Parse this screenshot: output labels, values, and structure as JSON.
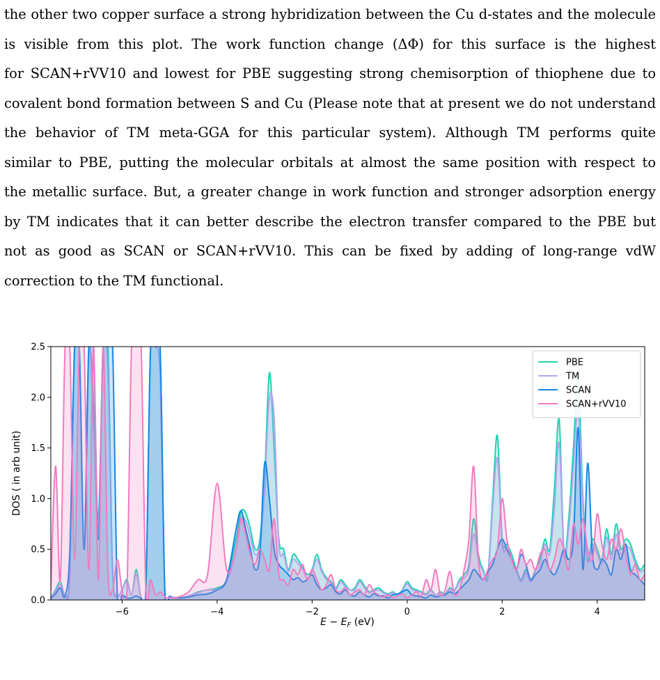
{
  "paragraph": {
    "lines": [
      "the other two copper surface a strong hybridization between the Cu d-states and the molecule",
      "is visible from this plot.  The work function change (ΔΦ) for this surface is the highest",
      "for SCAN+rVV10 and lowest for PBE suggesting strong chemisorption of thiophene due to",
      "covalent bond formation between S and Cu (Please note that at present we do not understand",
      "the behavior of TM meta-GGA for this particular system).  Although TM performs quite",
      "similar to PBE, putting the molecular orbitals at almost the same position with respect to",
      "the metallic surface. But, a greater change in work function and stronger adsorption energy",
      "by TM indicates that it can better describe the electron transfer compared to the PBE but",
      "not as good as SCAN or SCAN+rVV10.  This can be fixed by adding of long-range vdW",
      "correction to the TM functional."
    ]
  },
  "chart_data": {
    "type": "area",
    "title": "",
    "xlabel": "E − E_F (eV)",
    "ylabel": "DOS ( in arb unit)",
    "xlim": [
      -7.5,
      5.0
    ],
    "ylim": [
      0.0,
      2.5
    ],
    "xticks": [
      -6,
      -4,
      -2,
      0,
      2,
      4
    ],
    "yticks": [
      0.0,
      0.5,
      1.0,
      1.5,
      2.0,
      2.5
    ],
    "xtick_labels": [
      "−6",
      "−4",
      "−2",
      "0",
      "2",
      "4"
    ],
    "ytick_labels": [
      "0.0",
      "0.5",
      "1.0",
      "1.5",
      "2.0",
      "2.5"
    ],
    "grid": false,
    "legend_position": "top-right",
    "series": [
      {
        "name": "PBE",
        "color": "#1fd1b0",
        "x": [
          -7.5,
          -7.4,
          -7.3,
          -7.2,
          -7.1,
          -7.0,
          -6.9,
          -6.8,
          -6.7,
          -6.6,
          -6.5,
          -6.4,
          -6.3,
          -6.2,
          -6.1,
          -6.0,
          -5.9,
          -5.8,
          -5.7,
          -5.6,
          -5.5,
          -5.4,
          -5.3,
          -5.2,
          -5.1,
          -5.0,
          -4.8,
          -4.6,
          -4.4,
          -4.2,
          -4.0,
          -3.8,
          -3.6,
          -3.5,
          -3.4,
          -3.3,
          -3.2,
          -3.1,
          -3.0,
          -2.9,
          -2.8,
          -2.7,
          -2.6,
          -2.5,
          -2.4,
          -2.3,
          -2.2,
          -2.1,
          -2.0,
          -1.9,
          -1.8,
          -1.7,
          -1.6,
          -1.5,
          -1.4,
          -1.3,
          -1.2,
          -1.1,
          -1.0,
          -0.9,
          -0.8,
          -0.7,
          -0.6,
          -0.5,
          -0.4,
          -0.3,
          -0.2,
          -0.1,
          0.0,
          0.1,
          0.2,
          0.3,
          0.4,
          0.5,
          0.6,
          0.7,
          0.8,
          0.9,
          1.0,
          1.1,
          1.2,
          1.3,
          1.4,
          1.5,
          1.6,
          1.7,
          1.8,
          1.9,
          2.0,
          2.1,
          2.2,
          2.3,
          2.4,
          2.5,
          2.6,
          2.7,
          2.8,
          2.9,
          3.0,
          3.1,
          3.2,
          3.3,
          3.4,
          3.5,
          3.6,
          3.7,
          3.8,
          3.9,
          4.0,
          4.1,
          4.2,
          4.3,
          4.4,
          4.5,
          4.6,
          4.7,
          4.8,
          4.9,
          5.0
        ],
        "y": [
          0.02,
          0.1,
          0.18,
          0.05,
          0.3,
          2.5,
          2.5,
          0.6,
          2.5,
          1.9,
          0.8,
          2.5,
          2.5,
          0.3,
          0.05,
          0.1,
          0.2,
          0.05,
          0.3,
          0.02,
          0.1,
          2.5,
          2.5,
          2.5,
          0.08,
          0.04,
          0.02,
          0.04,
          0.08,
          0.1,
          0.12,
          0.2,
          0.6,
          0.87,
          0.86,
          0.7,
          0.5,
          0.6,
          1.2,
          2.24,
          1.5,
          0.6,
          0.5,
          0.3,
          0.45,
          0.4,
          0.32,
          0.25,
          0.3,
          0.45,
          0.3,
          0.22,
          0.18,
          0.12,
          0.2,
          0.15,
          0.1,
          0.12,
          0.2,
          0.14,
          0.08,
          0.1,
          0.12,
          0.08,
          0.06,
          0.08,
          0.05,
          0.1,
          0.18,
          0.12,
          0.1,
          0.08,
          0.06,
          0.1,
          0.05,
          0.08,
          0.06,
          0.12,
          0.1,
          0.2,
          0.25,
          0.35,
          0.8,
          0.45,
          0.3,
          0.25,
          1.0,
          1.62,
          0.6,
          0.55,
          0.45,
          0.3,
          0.2,
          0.3,
          0.2,
          0.3,
          0.4,
          0.6,
          0.5,
          1.1,
          1.78,
          0.5,
          0.8,
          1.5,
          2.2,
          1.0,
          0.4,
          0.6,
          0.5,
          0.4,
          0.7,
          0.45,
          0.75,
          0.5,
          0.6,
          0.55,
          0.4,
          0.3,
          0.35
        ]
      },
      {
        "name": "TM",
        "color": "#b8a3f2",
        "x": [
          -7.5,
          -7.4,
          -7.3,
          -7.2,
          -7.1,
          -7.0,
          -6.9,
          -6.8,
          -6.7,
          -6.6,
          -6.5,
          -6.4,
          -6.3,
          -6.2,
          -6.1,
          -6.0,
          -5.9,
          -5.8,
          -5.7,
          -5.6,
          -5.5,
          -5.4,
          -5.3,
          -5.2,
          -5.1,
          -5.0,
          -4.8,
          -4.6,
          -4.4,
          -4.2,
          -4.0,
          -3.8,
          -3.6,
          -3.5,
          -3.4,
          -3.3,
          -3.2,
          -3.1,
          -3.0,
          -2.9,
          -2.8,
          -2.7,
          -2.6,
          -2.5,
          -2.4,
          -2.3,
          -2.2,
          -2.1,
          -2.0,
          -1.9,
          -1.8,
          -1.7,
          -1.6,
          -1.5,
          -1.4,
          -1.3,
          -1.2,
          -1.1,
          -1.0,
          -0.9,
          -0.8,
          -0.7,
          -0.6,
          -0.5,
          -0.4,
          -0.3,
          -0.2,
          -0.1,
          0.0,
          0.1,
          0.2,
          0.3,
          0.4,
          0.5,
          0.6,
          0.7,
          0.8,
          0.9,
          1.0,
          1.1,
          1.2,
          1.3,
          1.4,
          1.5,
          1.6,
          1.7,
          1.8,
          1.9,
          2.0,
          2.1,
          2.2,
          2.3,
          2.4,
          2.5,
          2.6,
          2.7,
          2.8,
          2.9,
          3.0,
          3.1,
          3.2,
          3.3,
          3.4,
          3.5,
          3.6,
          3.7,
          3.8,
          3.9,
          4.0,
          4.1,
          4.2,
          4.3,
          4.4,
          4.5,
          4.6,
          4.7,
          4.8,
          4.9,
          5.0
        ],
        "y": [
          0.02,
          0.08,
          0.15,
          0.05,
          0.25,
          2.5,
          2.4,
          0.55,
          2.5,
          1.7,
          0.7,
          2.5,
          2.3,
          0.28,
          0.05,
          0.1,
          0.18,
          0.05,
          0.25,
          0.02,
          0.1,
          2.5,
          2.5,
          2.2,
          0.07,
          0.04,
          0.02,
          0.04,
          0.07,
          0.1,
          0.1,
          0.18,
          0.5,
          0.8,
          0.78,
          0.62,
          0.45,
          0.55,
          1.1,
          2.0,
          1.8,
          0.55,
          0.45,
          0.28,
          0.4,
          0.36,
          0.3,
          0.22,
          0.28,
          0.4,
          0.28,
          0.2,
          0.16,
          0.1,
          0.18,
          0.13,
          0.1,
          0.1,
          0.18,
          0.12,
          0.07,
          0.09,
          0.1,
          0.07,
          0.05,
          0.07,
          0.05,
          0.09,
          0.16,
          0.1,
          0.09,
          0.07,
          0.05,
          0.09,
          0.05,
          0.07,
          0.05,
          0.1,
          0.09,
          0.18,
          0.22,
          0.3,
          0.65,
          0.4,
          0.28,
          0.22,
          0.9,
          1.4,
          0.55,
          0.5,
          0.4,
          0.28,
          0.18,
          0.27,
          0.18,
          0.28,
          0.35,
          0.55,
          0.45,
          0.9,
          1.55,
          0.45,
          0.7,
          1.3,
          1.9,
          0.9,
          0.38,
          0.55,
          0.45,
          0.36,
          0.62,
          0.4,
          0.65,
          0.45,
          0.52,
          0.5,
          0.36,
          0.28,
          0.3
        ]
      },
      {
        "name": "SCAN",
        "color": "#1587e6",
        "x": [
          -7.5,
          -7.4,
          -7.3,
          -7.2,
          -7.1,
          -7.0,
          -6.9,
          -6.8,
          -6.7,
          -6.6,
          -6.5,
          -6.4,
          -6.3,
          -6.2,
          -6.1,
          -6.0,
          -5.9,
          -5.8,
          -5.7,
          -5.6,
          -5.5,
          -5.4,
          -5.3,
          -5.2,
          -5.1,
          -5.0,
          -4.8,
          -4.6,
          -4.4,
          -4.2,
          -4.0,
          -3.8,
          -3.6,
          -3.5,
          -3.4,
          -3.3,
          -3.2,
          -3.1,
          -3.0,
          -2.9,
          -2.8,
          -2.7,
          -2.6,
          -2.5,
          -2.4,
          -2.3,
          -2.2,
          -2.1,
          -2.0,
          -1.9,
          -1.8,
          -1.7,
          -1.6,
          -1.5,
          -1.4,
          -1.3,
          -1.2,
          -1.1,
          -1.0,
          -0.9,
          -0.8,
          -0.7,
          -0.6,
          -0.5,
          -0.4,
          -0.3,
          -0.2,
          -0.1,
          0.0,
          0.1,
          0.2,
          0.3,
          0.4,
          0.5,
          0.6,
          0.7,
          0.8,
          0.9,
          1.0,
          1.1,
          1.2,
          1.3,
          1.4,
          1.5,
          1.6,
          1.7,
          1.8,
          1.9,
          2.0,
          2.1,
          2.2,
          2.3,
          2.4,
          2.5,
          2.6,
          2.7,
          2.8,
          2.9,
          3.0,
          3.1,
          3.2,
          3.3,
          3.4,
          3.5,
          3.6,
          3.7,
          3.8,
          3.9,
          4.0,
          4.1,
          4.2,
          4.3,
          4.4,
          4.5,
          4.6,
          4.7,
          4.8,
          4.9,
          5.0
        ],
        "y": [
          0.02,
          0.06,
          0.12,
          0.04,
          0.5,
          2.5,
          2.5,
          0.5,
          2.5,
          2.5,
          0.6,
          2.5,
          2.5,
          2.5,
          0.04,
          0.05,
          0.02,
          0.02,
          0.04,
          0.02,
          0.1,
          2.5,
          2.5,
          2.5,
          0.1,
          0.03,
          0.02,
          0.03,
          0.05,
          0.06,
          0.1,
          0.2,
          0.7,
          0.88,
          0.7,
          0.5,
          0.3,
          0.45,
          1.35,
          1.0,
          0.5,
          0.35,
          0.3,
          0.25,
          0.2,
          0.22,
          0.18,
          0.2,
          0.25,
          0.15,
          0.1,
          0.12,
          0.15,
          0.08,
          0.06,
          0.1,
          0.05,
          0.04,
          0.08,
          0.05,
          0.03,
          0.06,
          0.04,
          0.04,
          0.02,
          0.05,
          0.06,
          0.08,
          0.1,
          0.05,
          0.04,
          0.03,
          0.02,
          0.05,
          0.03,
          0.04,
          0.05,
          0.08,
          0.06,
          0.1,
          0.15,
          0.2,
          0.3,
          0.25,
          0.2,
          0.28,
          0.35,
          0.5,
          0.6,
          0.5,
          0.4,
          0.3,
          0.45,
          0.35,
          0.2,
          0.25,
          0.3,
          0.4,
          0.3,
          0.25,
          0.35,
          0.5,
          0.4,
          0.6,
          1.7,
          0.3,
          1.35,
          0.45,
          0.3,
          0.4,
          0.35,
          0.25,
          0.5,
          0.4,
          0.55,
          0.3,
          0.25,
          0.2,
          0.15
        ]
      },
      {
        "name": "SCAN+rVV10",
        "color": "#f07bbf",
        "x": [
          -7.5,
          -7.4,
          -7.3,
          -7.2,
          -7.1,
          -7.0,
          -6.9,
          -6.8,
          -6.7,
          -6.6,
          -6.5,
          -6.4,
          -6.3,
          -6.2,
          -6.1,
          -6.0,
          -5.9,
          -5.8,
          -5.7,
          -5.6,
          -5.5,
          -5.4,
          -5.3,
          -5.2,
          -5.1,
          -5.0,
          -4.8,
          -4.6,
          -4.4,
          -4.2,
          -4.0,
          -3.8,
          -3.6,
          -3.5,
          -3.4,
          -3.3,
          -3.2,
          -3.1,
          -3.0,
          -2.9,
          -2.8,
          -2.7,
          -2.6,
          -2.5,
          -2.4,
          -2.3,
          -2.2,
          -2.1,
          -2.0,
          -1.9,
          -1.8,
          -1.7,
          -1.6,
          -1.5,
          -1.4,
          -1.3,
          -1.2,
          -1.1,
          -1.0,
          -0.9,
          -0.8,
          -0.7,
          -0.6,
          -0.5,
          -0.4,
          -0.3,
          -0.2,
          -0.1,
          0.0,
          0.1,
          0.2,
          0.3,
          0.4,
          0.5,
          0.6,
          0.7,
          0.8,
          0.9,
          1.0,
          1.1,
          1.2,
          1.3,
          1.4,
          1.5,
          1.6,
          1.7,
          1.8,
          1.9,
          2.0,
          2.1,
          2.2,
          2.3,
          2.4,
          2.5,
          2.6,
          2.7,
          2.8,
          2.9,
          3.0,
          3.1,
          3.2,
          3.3,
          3.4,
          3.5,
          3.6,
          3.7,
          3.8,
          3.9,
          4.0,
          4.1,
          4.2,
          4.3,
          4.4,
          4.5,
          4.6,
          4.7,
          4.8,
          4.9,
          5.0
        ],
        "y": [
          0.1,
          1.32,
          0.2,
          2.5,
          2.5,
          0.4,
          2.5,
          2.5,
          0.3,
          2.5,
          0.2,
          2.5,
          0.3,
          0.1,
          0.4,
          0.1,
          0.05,
          2.5,
          2.5,
          2.5,
          0.1,
          0.2,
          0.05,
          0.08,
          0.03,
          0.02,
          0.03,
          0.08,
          0.2,
          0.25,
          1.15,
          0.3,
          0.5,
          0.8,
          0.65,
          0.45,
          0.35,
          0.5,
          0.4,
          0.3,
          0.8,
          0.25,
          0.2,
          0.15,
          0.3,
          0.25,
          0.35,
          0.2,
          0.3,
          0.2,
          0.1,
          0.15,
          0.25,
          0.1,
          0.08,
          0.12,
          0.05,
          0.08,
          0.1,
          0.05,
          0.15,
          0.08,
          0.05,
          0.03,
          0.05,
          0.02,
          0.04,
          0.06,
          0.02,
          0.05,
          0.08,
          0.04,
          0.2,
          0.1,
          0.3,
          0.05,
          0.1,
          0.28,
          0.05,
          0.1,
          0.3,
          0.6,
          1.32,
          0.4,
          0.2,
          0.3,
          0.4,
          0.5,
          1.0,
          0.6,
          0.4,
          0.3,
          0.5,
          0.35,
          0.4,
          0.3,
          0.45,
          0.5,
          0.3,
          0.4,
          0.6,
          0.5,
          0.3,
          0.75,
          0.55,
          0.8,
          0.5,
          0.4,
          0.85,
          0.55,
          0.4,
          0.6,
          0.5,
          0.7,
          0.45,
          0.25,
          0.35,
          0.2,
          0.25
        ]
      }
    ]
  }
}
